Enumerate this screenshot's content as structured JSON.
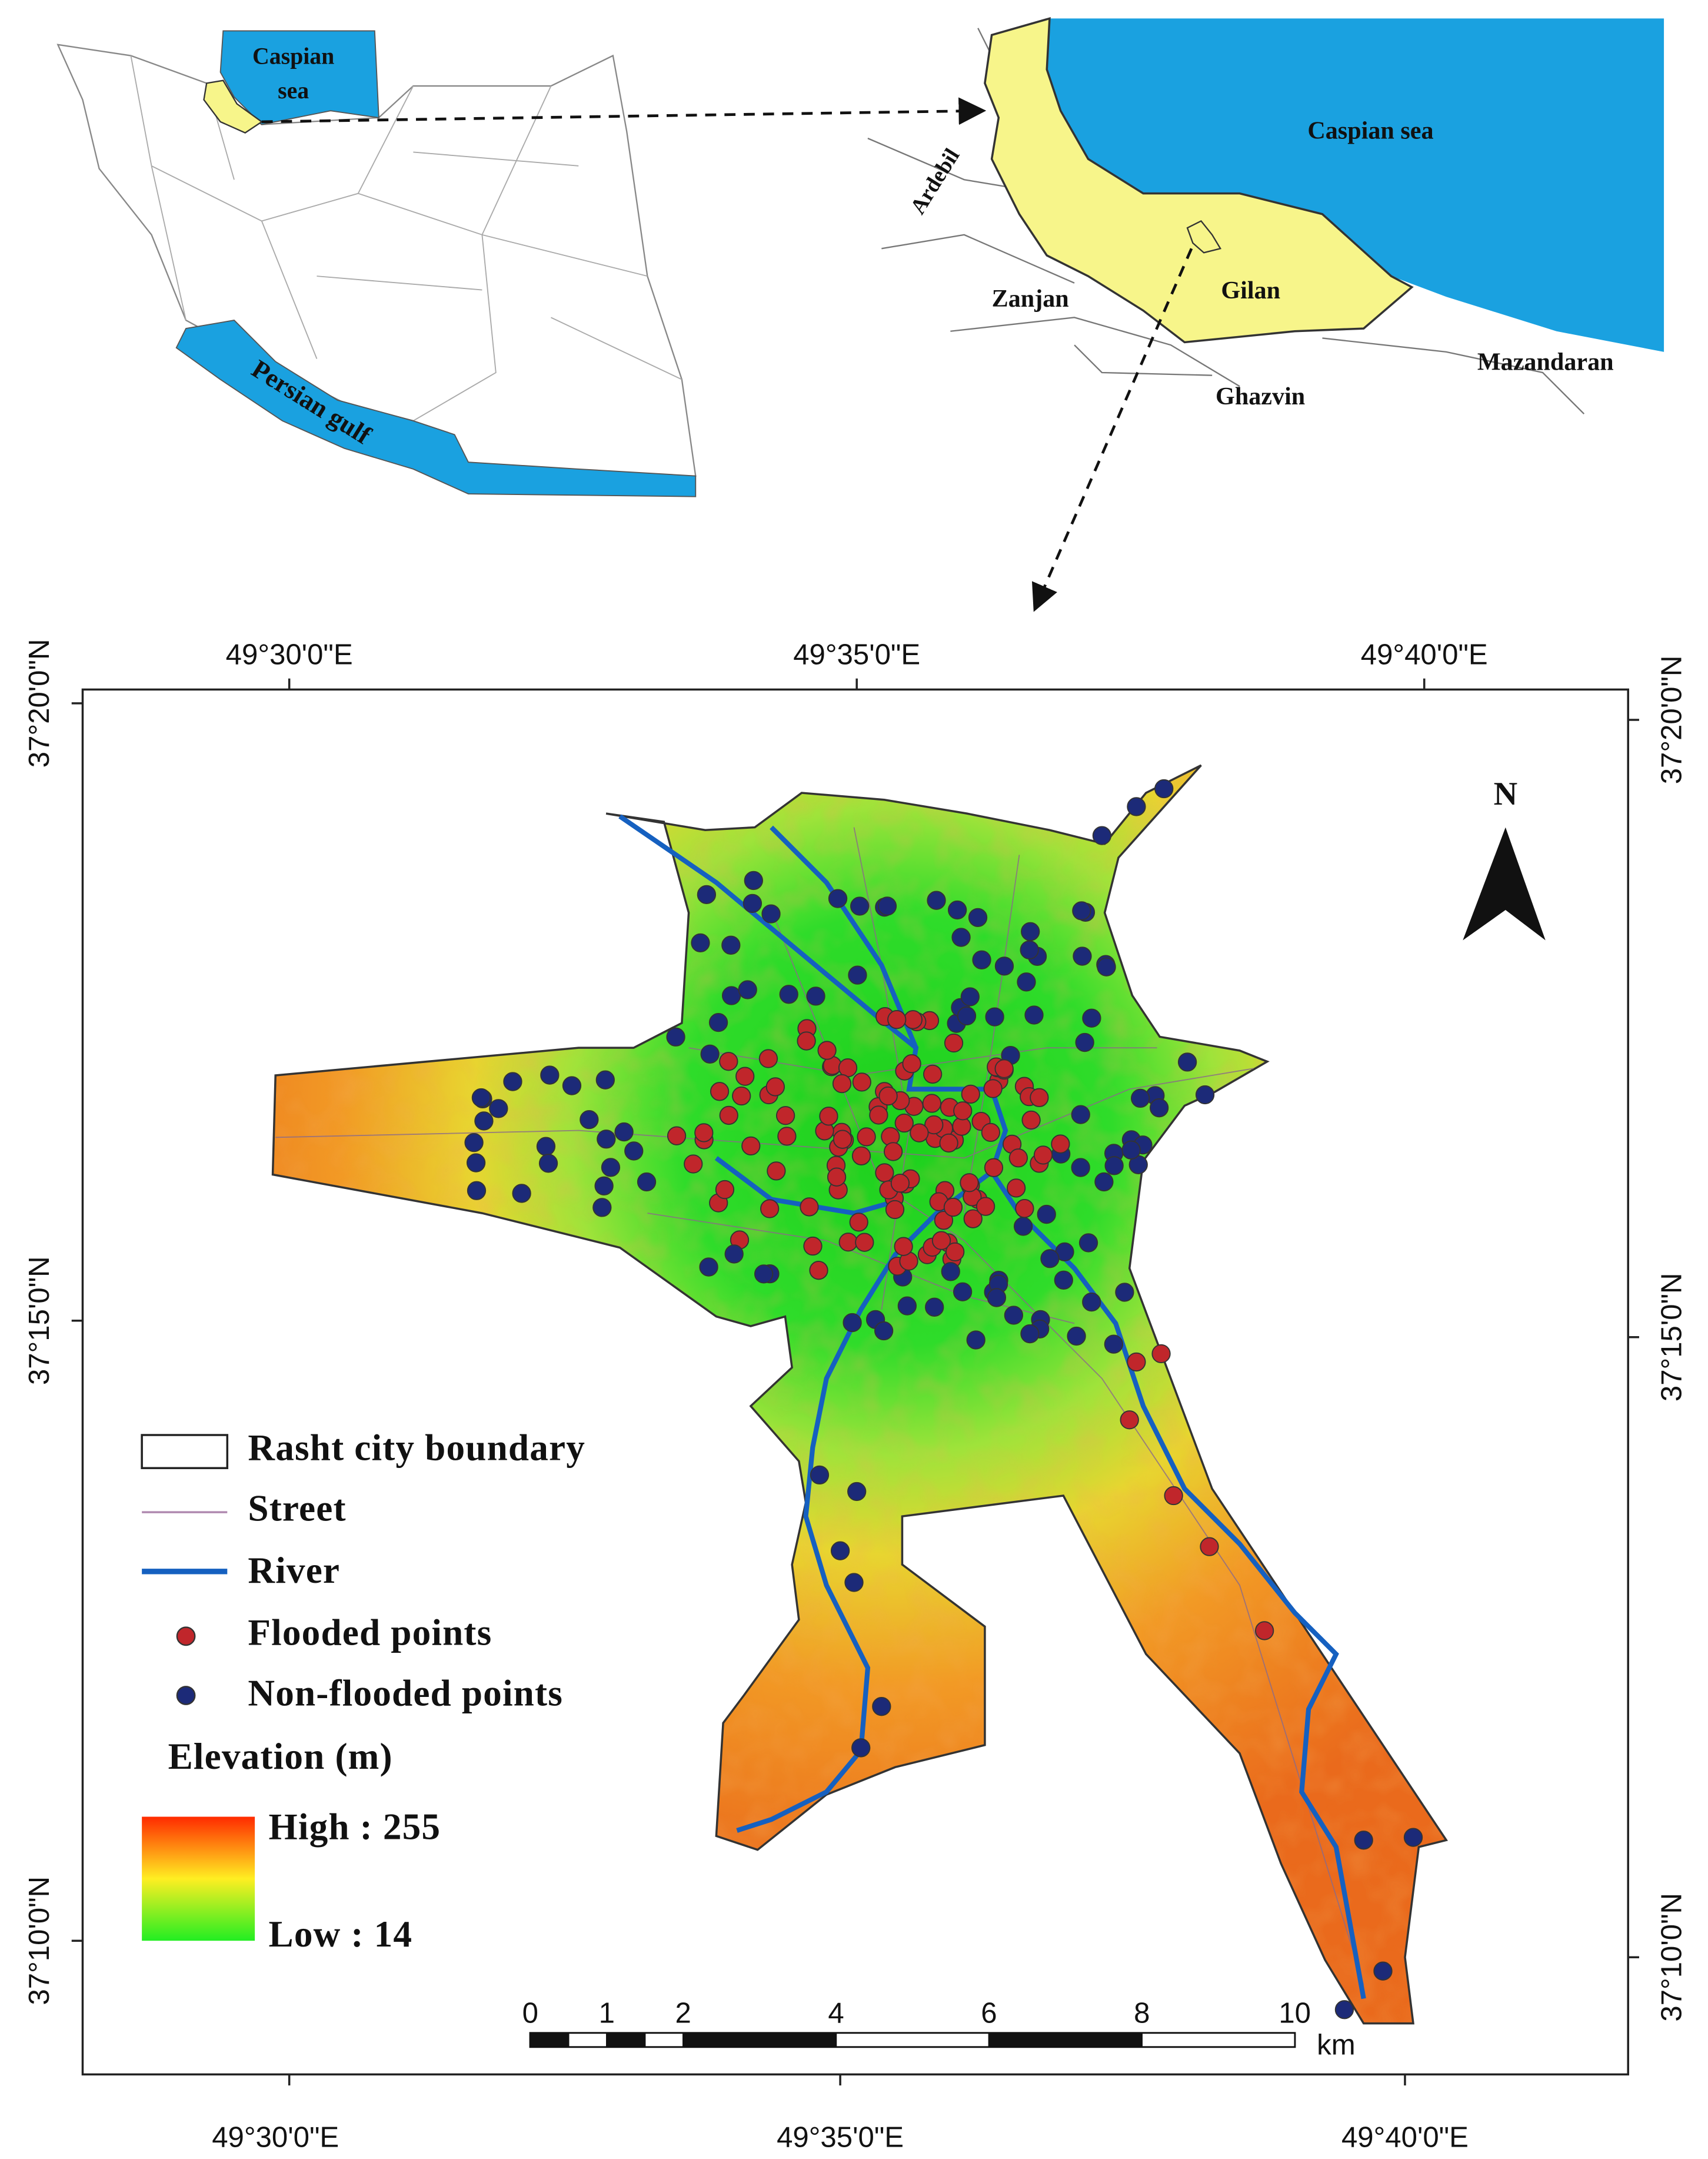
{
  "locator_map": {
    "caspian_label": [
      "Caspian",
      "sea"
    ],
    "gulf_label": "Persian gulf"
  },
  "inset_map": {
    "sea_label": "Caspian sea",
    "province_labels": [
      "Ardebil",
      "Zanjan",
      "Gilan",
      "Ghazvin",
      "Mazandaran"
    ]
  },
  "main_map": {
    "top_labels": [
      "49°30'0\"E",
      "49°35'0\"E",
      "49°40'0\"E"
    ],
    "bottom_labels": [
      "49°30'0\"E",
      "49°35'0\"E",
      "49°40'0\"E"
    ],
    "left_labels": [
      "37°20'0\"N",
      "37°15'0\"N",
      "37°10'0\"N"
    ],
    "right_labels": [
      "37°20'0\"N",
      "37°15'0\"N",
      "37°10'0\"N"
    ],
    "north": "N",
    "legend": {
      "items": [
        "Rasht city boundary",
        "Street",
        "River",
        "Flooded points",
        "Non-flooded points"
      ],
      "elevation_title": "Elevation (m)",
      "high": "High : 255",
      "low": "Low : 14"
    },
    "scale_bar": {
      "ticks": [
        0,
        1,
        2,
        4,
        6,
        8,
        10
      ],
      "unit": "km"
    }
  }
}
